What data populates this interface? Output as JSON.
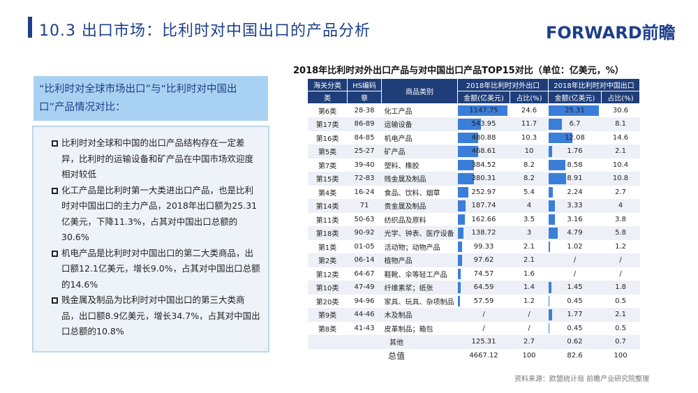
{
  "header": {
    "title": "10.3 出口市场：比利时对中国出口的产品分析",
    "logo": "FORWARD前瞻"
  },
  "left": {
    "heading": "“比利时对全球市场出口”与“比利时对中国出口”产品情况对比：",
    "bullets": [
      "比利时对全球和中国的出口产品结构存在一定差异，比利时的运输设备和矿产品在中国市场欢迎度相对较低",
      "化工产品是比利时第一大类进出口产品，也是比利时对中国出口的主力产品，2018年出口额为25.31亿美元，下降11.3%，占其对中国出口总额的30.6%",
      "机电产品是比利时对中国出口的第二大类商品，出口额12.1亿美元，增长9.0%，占其对中国出口总额的14.6%",
      "贱金属及制品为比利时对中国出口的第三大类商品，出口额8.9亿美元，增长34.7%，占其对中国出口总额的10.8%"
    ]
  },
  "table": {
    "title": "2018年比利时对外出口产品与对中国出口产品TOP15对比（单位：亿美元，%）",
    "headers": {
      "customs": "海关分类",
      "hs": "HS编码",
      "category": "商品类别",
      "world": "2018年比利时对外出口",
      "china": "2018年比利时对中国出口",
      "class": "类",
      "chapter": "章",
      "amount": "金额(亿美元)",
      "share": "占比(%)"
    },
    "bar_color": "#3b7ed9",
    "header_color": "#1f3d78",
    "rows": [
      [
        "第6类",
        "28-38",
        "化工产品",
        "1147.75",
        "24.6",
        "25.31",
        "30.6"
      ],
      [
        "第17类",
        "86-89",
        "运输设备",
        "543.95",
        "11.7",
        "6.7",
        "8.1"
      ],
      [
        "第16类",
        "84-85",
        "机电产品",
        "480.88",
        "10.3",
        "12.08",
        "14.6"
      ],
      [
        "第5类",
        "25-27",
        "矿产品",
        "468.61",
        "10",
        "1.76",
        "2.1"
      ],
      [
        "第7类",
        "39-40",
        "塑料、橡胶",
        "384.52",
        "8.2",
        "8.58",
        "10.4"
      ],
      [
        "第15类",
        "72-83",
        "贱金属及制品",
        "380.31",
        "8.2",
        "8.91",
        "10.8"
      ],
      [
        "第4类",
        "16-24",
        "食品、饮料、烟草",
        "252.97",
        "5.4",
        "2.24",
        "2.7"
      ],
      [
        "第14类",
        "71",
        "贵金属及制品",
        "187.74",
        "4",
        "3.33",
        "4"
      ],
      [
        "第11类",
        "50-63",
        "纺织品及原料",
        "162.66",
        "3.5",
        "3.16",
        "3.8"
      ],
      [
        "第18类",
        "90-92",
        "光学、钟表、医疗设备",
        "138.72",
        "3",
        "4.79",
        "5.8"
      ],
      [
        "第1类",
        "01-05",
        "活动物；动物产品",
        "99.33",
        "2.1",
        "1.02",
        "1.2"
      ],
      [
        "第2类",
        "06-14",
        "植物产品",
        "97.62",
        "2.1",
        "/",
        "/"
      ],
      [
        "第12类",
        "64-67",
        "鞋靴、伞等轻工产品",
        "74.57",
        "1.6",
        "/",
        "/"
      ],
      [
        "第10类",
        "47-49",
        "纤维素浆；纸张",
        "64.59",
        "1.4",
        "1.45",
        "1.8"
      ],
      [
        "第20类",
        "94-96",
        "家具、玩具、杂项制品",
        "57.59",
        "1.2",
        "0.45",
        "0.5"
      ],
      [
        "第9类",
        "44-46",
        "木及制品",
        "/",
        "/",
        "1.77",
        "2.1"
      ],
      [
        "第8类",
        "41-43",
        "皮革制品；箱包",
        "/",
        "/",
        "0.45",
        "0.5"
      ]
    ],
    "other": [
      "其他",
      "125.31",
      "2.7",
      "0.62",
      "0.7"
    ],
    "total": [
      "总值",
      "4667.12",
      "100",
      "82.6",
      "100"
    ]
  },
  "source": "资料来源：欧盟统计局  前瞻产业研究院整理"
}
